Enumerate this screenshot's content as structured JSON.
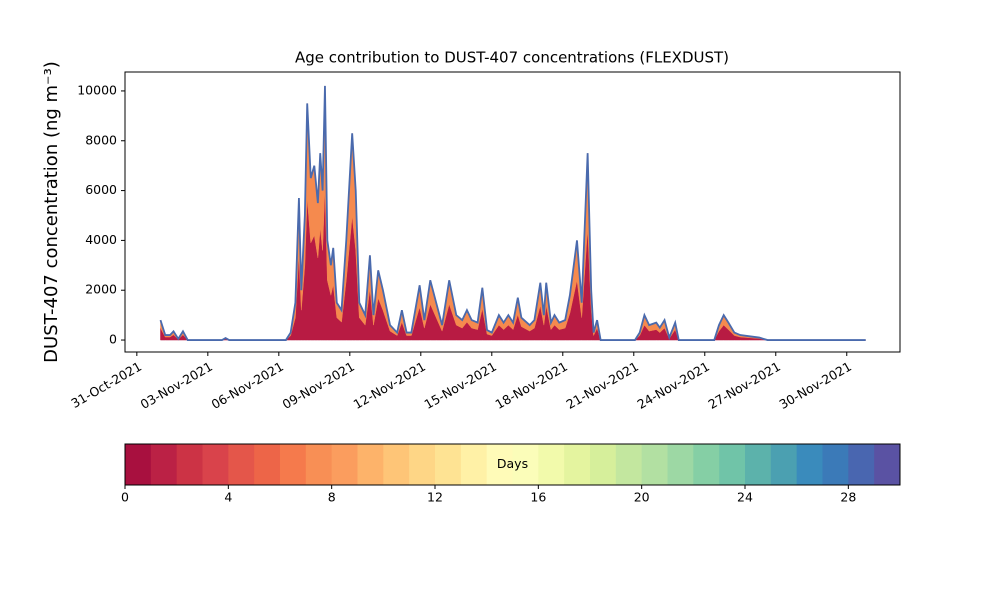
{
  "chart_data": {
    "type": "area",
    "title": "Age contribution to DUST-407 concentrations (FLEXDUST)",
    "y_label": "DUST-407 concentration (ng m⁻³)",
    "x": [
      1.0,
      1.2,
      1.4,
      1.55,
      1.75,
      1.95,
      2.15,
      3.6,
      3.75,
      3.9,
      6.3,
      6.5,
      6.7,
      6.85,
      6.95,
      7.1,
      7.2,
      7.35,
      7.5,
      7.65,
      7.75,
      7.85,
      7.95,
      8.05,
      8.2,
      8.3,
      8.45,
      8.65,
      8.85,
      9.1,
      9.25,
      9.4,
      9.65,
      9.85,
      10.0,
      10.2,
      10.4,
      10.7,
      11.0,
      11.2,
      11.4,
      11.6,
      11.95,
      12.15,
      12.4,
      12.65,
      12.9,
      13.2,
      13.5,
      13.75,
      13.95,
      14.15,
      14.4,
      14.6,
      14.8,
      15.0,
      15.3,
      15.5,
      15.7,
      15.9,
      16.1,
      16.25,
      16.6,
      16.8,
      17.05,
      17.2,
      17.3,
      17.5,
      17.65,
      17.85,
      18.1,
      18.3,
      18.6,
      18.8,
      19.05,
      19.2,
      19.3,
      19.45,
      19.6,
      21.05,
      21.25,
      21.45,
      21.65,
      21.95,
      22.1,
      22.3,
      22.5,
      22.75,
      22.9,
      24.4,
      24.6,
      24.8,
      25.0,
      25.25,
      25.5,
      25.9,
      26.3,
      26.65,
      30.8
    ],
    "series": [
      {
        "style": "area",
        "color": "#b81b43",
        "values": [
          480,
          120,
          120,
          210,
          30,
          210,
          0,
          0,
          48,
          0,
          0,
          180,
          900,
          3420,
          1200,
          3000,
          5700,
          3900,
          4200,
          3300,
          4500,
          3600,
          6120,
          2400,
          1800,
          2220,
          900,
          720,
          2400,
          4980,
          3600,
          900,
          600,
          2040,
          600,
          1680,
          1200,
          360,
          180,
          720,
          180,
          180,
          1320,
          480,
          1440,
          900,
          360,
          1440,
          600,
          480,
          720,
          480,
          420,
          1260,
          240,
          180,
          600,
          420,
          600,
          420,
          1020,
          540,
          360,
          480,
          1380,
          600,
          1380,
          420,
          600,
          420,
          480,
          1080,
          2400,
          900,
          4500,
          1200,
          180,
          480,
          0,
          0,
          180,
          600,
          360,
          420,
          300,
          480,
          60,
          420,
          0,
          0,
          360,
          600,
          420,
          180,
          120,
          90,
          60,
          0,
          0
        ]
      },
      {
        "style": "area",
        "color": "#f58a4e",
        "values": [
          320,
          80,
          80,
          140,
          20,
          140,
          0,
          0,
          32,
          0,
          0,
          120,
          600,
          2280,
          800,
          2000,
          3800,
          2600,
          2800,
          2200,
          3000,
          2400,
          4080,
          1600,
          1200,
          1480,
          600,
          480,
          1600,
          3320,
          2400,
          600,
          400,
          1360,
          400,
          1120,
          800,
          240,
          120,
          480,
          120,
          120,
          880,
          320,
          960,
          600,
          240,
          960,
          400,
          320,
          480,
          320,
          280,
          840,
          160,
          120,
          400,
          280,
          400,
          280,
          680,
          360,
          240,
          320,
          920,
          400,
          920,
          280,
          400,
          280,
          320,
          720,
          1600,
          600,
          3000,
          800,
          120,
          320,
          0,
          0,
          120,
          400,
          240,
          280,
          200,
          320,
          40,
          280,
          0,
          0,
          240,
          400,
          280,
          120,
          80,
          60,
          40,
          0,
          0
        ]
      },
      {
        "style": "line",
        "color": "#4a6aad",
        "values": [
          800,
          200,
          200,
          350,
          50,
          350,
          0,
          0,
          80,
          0,
          0,
          300,
          1500,
          5700,
          2000,
          5000,
          9500,
          6500,
          7000,
          5500,
          7500,
          6000,
          10200,
          4000,
          3000,
          3700,
          1500,
          1200,
          4000,
          8300,
          6000,
          1500,
          1000,
          3400,
          1000,
          2800,
          2000,
          600,
          300,
          1200,
          300,
          300,
          2200,
          800,
          2400,
          1500,
          600,
          2400,
          1000,
          800,
          1200,
          800,
          700,
          2100,
          400,
          300,
          1000,
          700,
          1000,
          700,
          1700,
          900,
          600,
          800,
          2300,
          1000,
          2300,
          700,
          1000,
          700,
          800,
          1800,
          4000,
          1500,
          7500,
          2000,
          300,
          800,
          0,
          0,
          300,
          1000,
          600,
          700,
          500,
          800,
          100,
          700,
          0,
          0,
          600,
          1000,
          700,
          300,
          200,
          150,
          100,
          0,
          0
        ]
      }
    ],
    "xlim": [
      -0.5,
      32.25
    ],
    "xticks": [
      {
        "value": 0,
        "label": "31-Oct-2021"
      },
      {
        "value": 3,
        "label": "03-Nov-2021"
      },
      {
        "value": 6,
        "label": "06-Nov-2021"
      },
      {
        "value": 9,
        "label": "09-Nov-2021"
      },
      {
        "value": 12,
        "label": "12-Nov-2021"
      },
      {
        "value": 15,
        "label": "15-Nov-2021"
      },
      {
        "value": 18,
        "label": "18-Nov-2021"
      },
      {
        "value": 21,
        "label": "21-Nov-2021"
      },
      {
        "value": 24,
        "label": "24-Nov-2021"
      },
      {
        "value": 27,
        "label": "27-Nov-2021"
      },
      {
        "value": 30,
        "label": "30-Nov-2021"
      }
    ],
    "ylim": [
      -480,
      10760
    ],
    "yticks": [
      0,
      2000,
      4000,
      6000,
      8000,
      10000
    ],
    "grid": false,
    "colorbar": {
      "label": "Days",
      "lim": [
        0,
        30
      ],
      "ticks": [
        0,
        4,
        8,
        12,
        16,
        20,
        24,
        28
      ],
      "colors": [
        "#a8103f",
        "#bb2145",
        "#cc3345",
        "#d9434b",
        "#e4564a",
        "#ed6548",
        "#f57a4c",
        "#f88f55",
        "#fb9d5e",
        "#fdb36a",
        "#fec577",
        "#fed686",
        "#fee393",
        "#fff1a6",
        "#fffbb8",
        "#fbfdb9",
        "#f2faab",
        "#e4f49f",
        "#d6ef9b",
        "#c3e79f",
        "#b2e0a2",
        "#9dd8a4",
        "#85cfa5",
        "#70c4a8",
        "#5cb2ab",
        "#4ba0b1",
        "#3a8bbc",
        "#3b7ab8",
        "#4966b0",
        "#5a52a3"
      ]
    }
  }
}
